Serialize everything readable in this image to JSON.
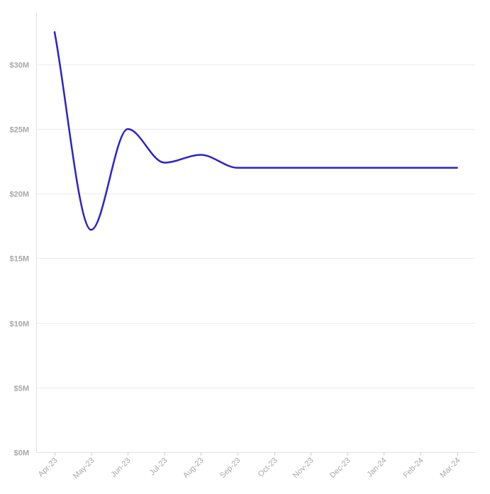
{
  "chart_data": {
    "type": "line",
    "categories": [
      "Apr-23",
      "May-23",
      "Jun-23",
      "Jul-23",
      "Aug-23",
      "Sep-23",
      "Oct-23",
      "Nov-23",
      "Dec-23",
      "Jan-24",
      "Feb-24",
      "Mar-24"
    ],
    "series": [
      {
        "values": [
          32.5,
          17.2,
          25.0,
          22.4,
          23.0,
          22.0,
          22.0,
          22.0,
          22.0,
          22.0,
          22.0,
          22.0
        ]
      }
    ],
    "yticks": [
      0,
      5,
      10,
      15,
      20,
      25,
      30
    ],
    "ytick_labels": [
      "$0M",
      "$5M",
      "$10M",
      "$15M",
      "$20M",
      "$25M",
      "$30M"
    ],
    "ylim": [
      0,
      33.5
    ],
    "grid": true,
    "line_color": "#2a22cc"
  }
}
